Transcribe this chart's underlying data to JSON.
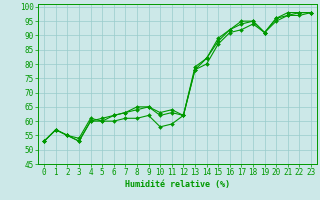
{
  "xlabel": "Humidité relative (%)",
  "bg_color": "#cce8e8",
  "grid_color": "#99cccc",
  "line_color": "#009900",
  "xlim": [
    -0.5,
    23.5
  ],
  "ylim": [
    45,
    101
  ],
  "yticks": [
    45,
    50,
    55,
    60,
    65,
    70,
    75,
    80,
    85,
    90,
    95,
    100
  ],
  "xticks": [
    0,
    1,
    2,
    3,
    4,
    5,
    6,
    7,
    8,
    9,
    10,
    11,
    12,
    13,
    14,
    15,
    16,
    17,
    18,
    19,
    20,
    21,
    22,
    23
  ],
  "series1": [
    53,
    57,
    55,
    54,
    61,
    60,
    62,
    63,
    65,
    65,
    62,
    63,
    62,
    79,
    82,
    88,
    92,
    94,
    95,
    91,
    96,
    97,
    98,
    98
  ],
  "series2": [
    53,
    57,
    55,
    53,
    60,
    60,
    60,
    61,
    61,
    62,
    58,
    59,
    62,
    78,
    80,
    87,
    91,
    92,
    94,
    91,
    95,
    97,
    97,
    98
  ],
  "series3": [
    53,
    57,
    55,
    53,
    60,
    61,
    62,
    63,
    64,
    65,
    63,
    64,
    62,
    78,
    82,
    89,
    92,
    95,
    95,
    91,
    96,
    98,
    98,
    98
  ],
  "xlabel_fontsize": 6,
  "tick_fontsize": 5.5,
  "linewidth": 0.8,
  "markersize": 2.0
}
